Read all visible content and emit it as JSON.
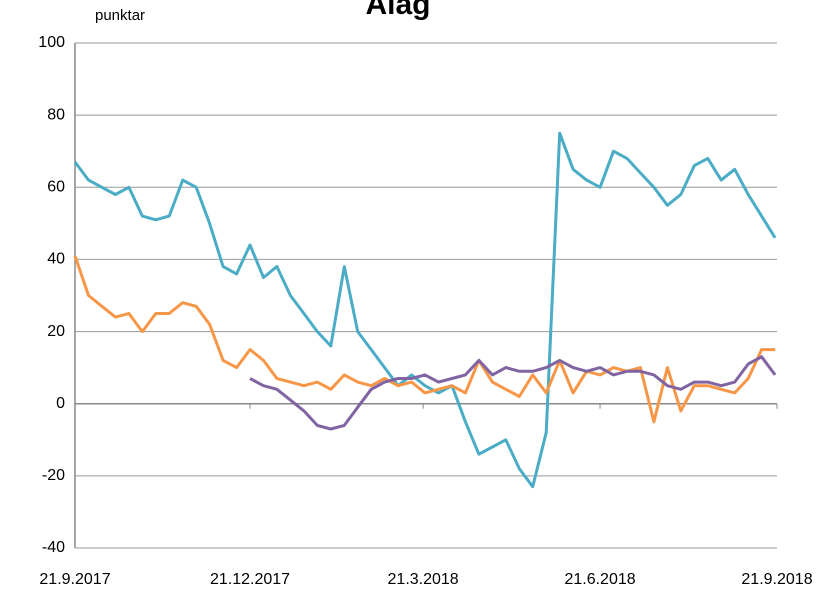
{
  "chart_data": {
    "type": "line",
    "title": "Álag",
    "y_label": "punktar",
    "x": [
      "2017-09-21",
      "2017-09-28",
      "2017-10-05",
      "2017-10-12",
      "2017-10-19",
      "2017-10-26",
      "2017-11-02",
      "2017-11-09",
      "2017-11-16",
      "2017-11-23",
      "2017-11-30",
      "2017-12-07",
      "2017-12-14",
      "2017-12-21",
      "2017-12-28",
      "2018-01-04",
      "2018-01-11",
      "2018-01-18",
      "2018-01-25",
      "2018-02-01",
      "2018-02-08",
      "2018-02-15",
      "2018-02-22",
      "2018-03-01",
      "2018-03-08",
      "2018-03-15",
      "2018-03-22",
      "2018-03-29",
      "2018-04-05",
      "2018-04-12",
      "2018-04-19",
      "2018-04-26",
      "2018-05-03",
      "2018-05-10",
      "2018-05-17",
      "2018-05-24",
      "2018-05-31",
      "2018-06-07",
      "2018-06-14",
      "2018-06-21",
      "2018-06-28",
      "2018-07-05",
      "2018-07-12",
      "2018-07-19",
      "2018-07-26",
      "2018-08-02",
      "2018-08-09",
      "2018-08-16",
      "2018-08-23",
      "2018-08-30",
      "2018-09-06",
      "2018-09-13",
      "2018-09-20"
    ],
    "series": [
      {
        "color": "#4bacc6",
        "values": [
          67,
          62,
          60,
          58,
          60,
          52,
          51,
          52,
          62,
          60,
          50,
          38,
          36,
          44,
          35,
          38,
          30,
          25,
          20,
          16,
          38,
          20,
          15,
          10,
          5,
          8,
          5,
          3,
          5,
          -5,
          -14,
          -12,
          -10,
          -18,
          -23,
          -8,
          75,
          65,
          62,
          60,
          70,
          68,
          64,
          60,
          55,
          58,
          66,
          68,
          62,
          65,
          58,
          52,
          46
        ]
      },
      {
        "color": "#f79646",
        "values": [
          41,
          30,
          27,
          24,
          25,
          20,
          25,
          25,
          28,
          27,
          22,
          12,
          10,
          15,
          12,
          7,
          6,
          5,
          6,
          4,
          8,
          6,
          5,
          7,
          5,
          6,
          3,
          4,
          5,
          3,
          12,
          6,
          4,
          2,
          8,
          3,
          12,
          3,
          9,
          8,
          10,
          9,
          10,
          -5,
          10,
          -2,
          5,
          5,
          4,
          3,
          7,
          15,
          15
        ]
      },
      {
        "color": "#8064a2",
        "values": [
          null,
          null,
          null,
          null,
          null,
          null,
          null,
          null,
          null,
          null,
          null,
          null,
          null,
          7,
          5,
          4,
          1,
          -2,
          -6,
          -7,
          -6,
          -1,
          4,
          6,
          7,
          7,
          8,
          6,
          7,
          8,
          12,
          8,
          10,
          9,
          9,
          10,
          12,
          10,
          9,
          10,
          8,
          9,
          9,
          8,
          5,
          4,
          6,
          6,
          5,
          6,
          11,
          13,
          8
        ]
      }
    ],
    "xlim": [
      "2017-09-21",
      "2018-09-21"
    ],
    "xticks": [
      {
        "value": "2017-09-21",
        "label": "21.9.2017"
      },
      {
        "value": "2017-12-21",
        "label": "21.12.2017"
      },
      {
        "value": "2018-03-21",
        "label": "21.3.2018"
      },
      {
        "value": "2018-06-21",
        "label": "21.6.2018"
      },
      {
        "value": "2018-09-21",
        "label": "21.9.2018"
      }
    ],
    "ylim": [
      -40,
      100
    ],
    "yticks": [
      -40,
      -20,
      0,
      20,
      40,
      60,
      80,
      100
    ],
    "grid": true
  }
}
